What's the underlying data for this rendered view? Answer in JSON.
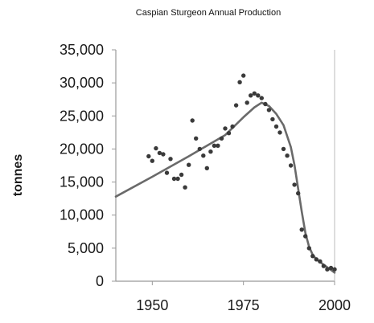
{
  "chart_data": {
    "type": "scatter",
    "title": "Caspian Sturgeon Annual Production",
    "xlabel": "",
    "ylabel": "tonnes",
    "xlim": [
      1940,
      2000
    ],
    "ylim": [
      0,
      35000
    ],
    "x_ticks": [
      1950,
      1975,
      2000
    ],
    "x_tick_labels": [
      "1950",
      "1975",
      "2000"
    ],
    "y_ticks": [
      0,
      5000,
      10000,
      15000,
      20000,
      25000,
      30000,
      35000
    ],
    "y_tick_labels": [
      "0",
      "5,000",
      "10,000",
      "15,000",
      "20,000",
      "25,000",
      "30,000",
      "35,000"
    ],
    "grid": false,
    "legend": "none",
    "colors": {
      "points": "#3a3a3a",
      "line": "#6a6a6a",
      "axis": "#999999",
      "plot_border": "#bbbbbb"
    },
    "series": [
      {
        "kind": "scatter",
        "x": [
          1949,
          1950,
          1951,
          1952,
          1953,
          1954,
          1955,
          1956,
          1957,
          1958,
          1959,
          1960,
          1961,
          1962,
          1963,
          1964,
          1965,
          1966,
          1967,
          1968,
          1969,
          1970,
          1971,
          1972,
          1973,
          1974,
          1975,
          1976,
          1977,
          1978,
          1979,
          1980,
          1981,
          1982,
          1983,
          1984,
          1985,
          1986,
          1987,
          1988,
          1989,
          1990,
          1991,
          1992,
          1993,
          1994,
          1995,
          1996,
          1997,
          1998,
          1999,
          2000
        ],
        "y": [
          18900,
          18200,
          20100,
          19400,
          19200,
          16400,
          18500,
          15500,
          15500,
          16100,
          14200,
          17600,
          24300,
          21600,
          20000,
          19000,
          17100,
          19600,
          20500,
          20500,
          21600,
          23100,
          22400,
          23400,
          26600,
          30100,
          31100,
          27000,
          28100,
          28400,
          28100,
          27700,
          26800,
          25900,
          24500,
          23400,
          22500,
          20000,
          19000,
          17500,
          14600,
          13300,
          7800,
          6800,
          5000,
          3800,
          3300,
          3000,
          2300,
          1800,
          2000,
          1800
        ]
      },
      {
        "kind": "line",
        "x": [
          1940,
          1950,
          1960,
          1970,
          1975,
          1978,
          1980,
          1982,
          1984,
          1986,
          1988,
          1989,
          1990,
          1991,
          1992,
          1993,
          1994,
          1995,
          1996,
          1997,
          1998,
          1999,
          2000
        ],
        "y": [
          12800,
          15800,
          18900,
          22100,
          24800,
          26300,
          27000,
          26500,
          25300,
          23600,
          20300,
          17600,
          14000,
          10500,
          7300,
          5200,
          4000,
          3300,
          2900,
          2500,
          2100,
          1700,
          1300
        ]
      }
    ]
  }
}
